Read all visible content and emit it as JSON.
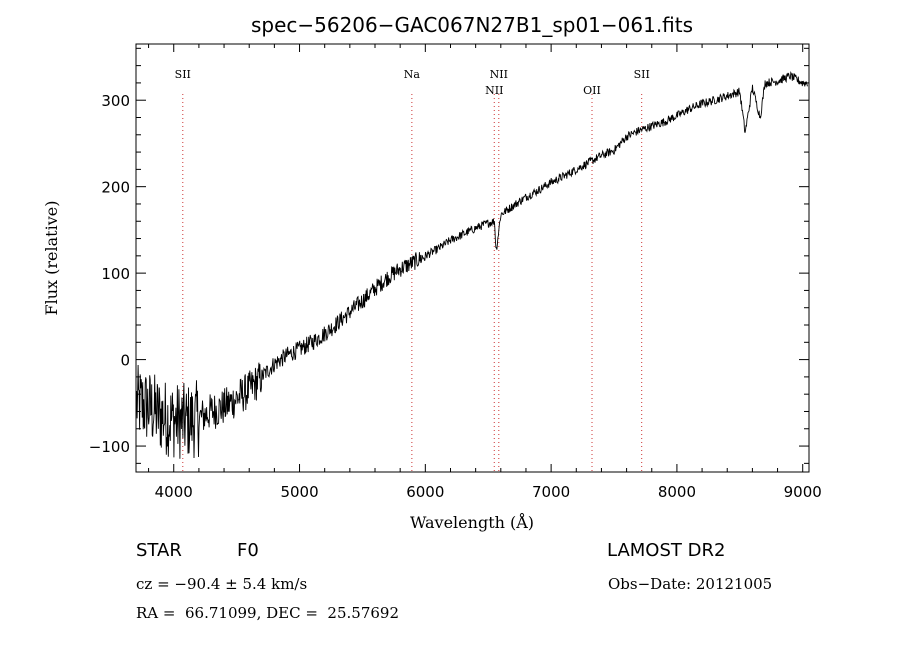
{
  "chart_data": {
    "type": "line",
    "title": "spec−56206−GAC067N27B1_sp01−061.fits",
    "xlabel": "Wavelength (Å)",
    "ylabel": "Flux (relative)",
    "xlim": [
      3700,
      9050
    ],
    "ylim": [
      -130,
      365
    ],
    "xticks": [
      4000,
      5000,
      6000,
      7000,
      8000,
      9000
    ],
    "yticks": [
      -100,
      0,
      100,
      200,
      300
    ],
    "x": [
      3700,
      3800,
      3900,
      4000,
      4100,
      4200,
      4300,
      4400,
      4500,
      4600,
      4700,
      4800,
      4900,
      5000,
      5100,
      5200,
      5300,
      5400,
      5500,
      5600,
      5700,
      5800,
      5900,
      6000,
      6100,
      6200,
      6300,
      6400,
      6500,
      6550,
      6563,
      6600,
      6700,
      6800,
      6900,
      7000,
      7100,
      7200,
      7300,
      7400,
      7500,
      7600,
      7700,
      7800,
      7900,
      8000,
      8100,
      8200,
      8300,
      8400,
      8500,
      8542,
      8600,
      8662,
      8700,
      8800,
      8900,
      9000
    ],
    "y": [
      -50,
      -55,
      -65,
      -70,
      -72,
      -68,
      -60,
      -55,
      -45,
      -35,
      -20,
      -5,
      5,
      12,
      20,
      30,
      42,
      55,
      68,
      82,
      95,
      105,
      112,
      120,
      128,
      138,
      145,
      152,
      158,
      160,
      125,
      168,
      178,
      188,
      196,
      205,
      212,
      220,
      228,
      236,
      242,
      258,
      265,
      270,
      275,
      282,
      290,
      296,
      300,
      305,
      310,
      262,
      315,
      280,
      320,
      322,
      328,
      320
    ],
    "reference_lines": [
      {
        "label": "SII",
        "x": 4072
      },
      {
        "label": "Na",
        "x": 5893
      },
      {
        "label": "NII",
        "x": 6548
      },
      {
        "label": "NII",
        "x": 6584
      },
      {
        "label": "OII",
        "x": 7325
      },
      {
        "label": "SII",
        "x": 7720
      }
    ],
    "line_color": "#000000",
    "reference_line_color": "#cc3333"
  },
  "info": {
    "object_class": "STAR",
    "subclass": "F0",
    "survey": "LAMOST DR2",
    "redshift": "cz = −90.4 ± 5.4 km/s",
    "obs_date": "Obs−Date: 20121005",
    "coordinates": "RA =  66.71099, DEC =  25.57692"
  }
}
